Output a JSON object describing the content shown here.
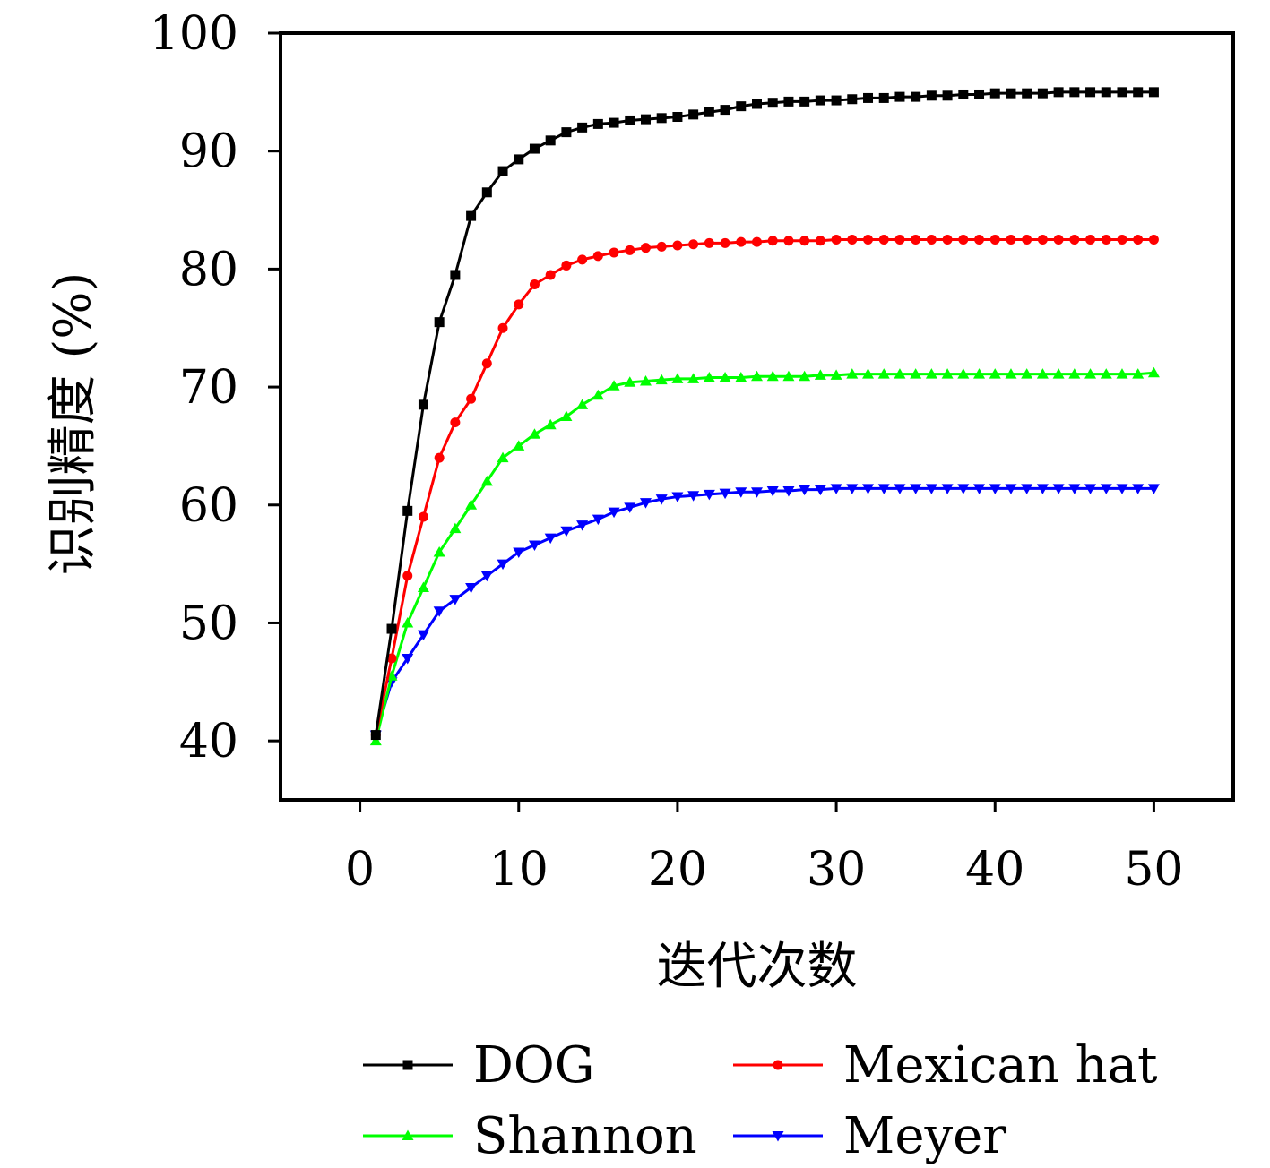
{
  "chart_data": {
    "type": "line",
    "xlabel": "迭代次数",
    "ylabel": "识别精度 (%)",
    "xlim": [
      -5,
      55
    ],
    "ylim": [
      35,
      100
    ],
    "xticks": [
      0,
      10,
      20,
      30,
      40,
      50
    ],
    "yticks": [
      40,
      50,
      60,
      70,
      80,
      90,
      100
    ],
    "grid": false,
    "legend_position": "bottom",
    "series": [
      {
        "name": "DOG",
        "color": "#000000",
        "marker": "square",
        "x": [
          1,
          2,
          3,
          4,
          5,
          6,
          7,
          8,
          9,
          10,
          11,
          12,
          13,
          14,
          15,
          16,
          17,
          18,
          19,
          20,
          21,
          22,
          23,
          24,
          25,
          26,
          27,
          28,
          29,
          30,
          31,
          32,
          33,
          34,
          35,
          36,
          37,
          38,
          39,
          40,
          41,
          42,
          43,
          44,
          45,
          46,
          47,
          48,
          49,
          50
        ],
        "values": [
          40.5,
          49.5,
          59.5,
          68.5,
          75.5,
          79.5,
          84.5,
          86.5,
          88.3,
          89.3,
          90.2,
          90.9,
          91.6,
          92.0,
          92.3,
          92.4,
          92.6,
          92.7,
          92.8,
          92.9,
          93.1,
          93.3,
          93.5,
          93.8,
          94.0,
          94.1,
          94.2,
          94.2,
          94.3,
          94.3,
          94.4,
          94.5,
          94.5,
          94.6,
          94.6,
          94.7,
          94.7,
          94.8,
          94.8,
          94.9,
          94.9,
          94.9,
          94.9,
          95.0,
          95.0,
          95.0,
          95.0,
          95.0,
          95.0,
          95.0
        ]
      },
      {
        "name": "Mexican hat",
        "color": "#ff0000",
        "marker": "circle",
        "x": [
          1,
          2,
          3,
          4,
          5,
          6,
          7,
          8,
          9,
          10,
          11,
          12,
          13,
          14,
          15,
          16,
          17,
          18,
          19,
          20,
          21,
          22,
          23,
          24,
          25,
          26,
          27,
          28,
          29,
          30,
          31,
          32,
          33,
          34,
          35,
          36,
          37,
          38,
          39,
          40,
          41,
          42,
          43,
          44,
          45,
          46,
          47,
          48,
          49,
          50
        ],
        "values": [
          40.5,
          47.0,
          54.0,
          59.0,
          64.0,
          67.0,
          69.0,
          72.0,
          75.0,
          77.0,
          78.7,
          79.5,
          80.3,
          80.8,
          81.1,
          81.4,
          81.6,
          81.8,
          81.9,
          82.0,
          82.1,
          82.2,
          82.2,
          82.3,
          82.3,
          82.4,
          82.4,
          82.4,
          82.4,
          82.5,
          82.5,
          82.5,
          82.5,
          82.5,
          82.5,
          82.5,
          82.5,
          82.5,
          82.5,
          82.5,
          82.5,
          82.5,
          82.5,
          82.5,
          82.5,
          82.5,
          82.5,
          82.5,
          82.5,
          82.5
        ]
      },
      {
        "name": "Shannon",
        "color": "#00ff00",
        "marker": "triangle-up",
        "x": [
          1,
          2,
          3,
          4,
          5,
          6,
          7,
          8,
          9,
          10,
          11,
          12,
          13,
          14,
          15,
          16,
          17,
          18,
          19,
          20,
          21,
          22,
          23,
          24,
          25,
          26,
          27,
          28,
          29,
          30,
          31,
          32,
          33,
          34,
          35,
          36,
          37,
          38,
          39,
          40,
          41,
          42,
          43,
          44,
          45,
          46,
          47,
          48,
          49,
          50
        ],
        "values": [
          40.0,
          45.5,
          50.0,
          53.0,
          56.0,
          58.0,
          60.0,
          62.0,
          64.0,
          65.0,
          66.0,
          66.8,
          67.5,
          68.5,
          69.3,
          70.1,
          70.4,
          70.5,
          70.6,
          70.7,
          70.7,
          70.8,
          70.8,
          70.8,
          70.9,
          70.9,
          70.9,
          70.9,
          71.0,
          71.0,
          71.1,
          71.1,
          71.1,
          71.1,
          71.1,
          71.1,
          71.1,
          71.1,
          71.1,
          71.1,
          71.1,
          71.1,
          71.1,
          71.1,
          71.1,
          71.1,
          71.1,
          71.1,
          71.1,
          71.2
        ]
      },
      {
        "name": "Meyer",
        "color": "#0000ff",
        "marker": "triangle-down",
        "x": [
          1,
          2,
          3,
          4,
          5,
          6,
          7,
          8,
          9,
          10,
          11,
          12,
          13,
          14,
          15,
          16,
          17,
          18,
          19,
          20,
          21,
          22,
          23,
          24,
          25,
          26,
          27,
          28,
          29,
          30,
          31,
          32,
          33,
          34,
          35,
          36,
          37,
          38,
          39,
          40,
          41,
          42,
          43,
          44,
          45,
          46,
          47,
          48,
          49,
          50
        ],
        "values": [
          40.5,
          45.0,
          47.0,
          49.0,
          51.0,
          52.0,
          53.0,
          54.0,
          55.0,
          56.0,
          56.6,
          57.2,
          57.8,
          58.3,
          58.8,
          59.4,
          59.8,
          60.2,
          60.5,
          60.7,
          60.8,
          60.9,
          61.0,
          61.1,
          61.1,
          61.2,
          61.2,
          61.3,
          61.3,
          61.4,
          61.4,
          61.4,
          61.4,
          61.4,
          61.4,
          61.4,
          61.4,
          61.4,
          61.4,
          61.4,
          61.4,
          61.4,
          61.4,
          61.4,
          61.4,
          61.4,
          61.4,
          61.4,
          61.4,
          61.4
        ]
      }
    ]
  }
}
